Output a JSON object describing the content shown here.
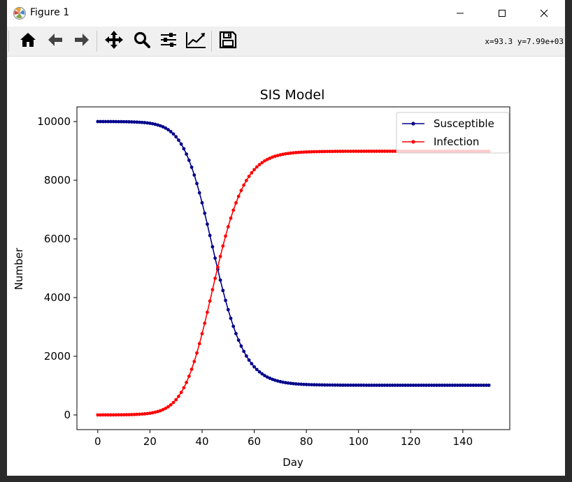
{
  "window": {
    "title": "Figure 1",
    "coords_readout": "x=93.3 y=7.99e+03"
  },
  "toolbar": {
    "buttons": [
      "home-icon",
      "back-icon",
      "forward-icon",
      "pan-icon",
      "zoom-icon",
      "configure-subplots-icon",
      "edit-axis-icon",
      "save-icon"
    ]
  },
  "colors": {
    "susceptible": "#00008b",
    "infection": "#ff0000"
  },
  "chart_data": {
    "type": "line",
    "title": "SIS Model",
    "xlabel": "Day",
    "ylabel": "Number",
    "xlim": [
      -8,
      158
    ],
    "ylim": [
      -500,
      10500
    ],
    "xticks": [
      0,
      20,
      40,
      60,
      80,
      100,
      120,
      140
    ],
    "yticks": [
      0,
      2000,
      4000,
      6000,
      8000,
      10000
    ],
    "grid": false,
    "legend_position": "top-right",
    "x": [
      0,
      1,
      2,
      3,
      4,
      5,
      6,
      7,
      8,
      9,
      10,
      11,
      12,
      13,
      14,
      15,
      16,
      17,
      18,
      19,
      20,
      21,
      22,
      23,
      24,
      25,
      26,
      27,
      28,
      29,
      30,
      31,
      32,
      33,
      34,
      35,
      36,
      37,
      38,
      39,
      40,
      41,
      42,
      43,
      44,
      45,
      46,
      47,
      48,
      49,
      50,
      51,
      52,
      53,
      54,
      55,
      56,
      57,
      58,
      59,
      60,
      61,
      62,
      63,
      64,
      65,
      66,
      67,
      68,
      69,
      70,
      71,
      72,
      73,
      74,
      75,
      76,
      77,
      78,
      79,
      80,
      81,
      82,
      83,
      84,
      85,
      86,
      87,
      88,
      89,
      90,
      91,
      92,
      93,
      94,
      95,
      96,
      97,
      98,
      99,
      100,
      101,
      102,
      103,
      104,
      105,
      106,
      107,
      108,
      109,
      110,
      111,
      112,
      113,
      114,
      115,
      116,
      117,
      118,
      119,
      120,
      121,
      122,
      123,
      124,
      125,
      126,
      127,
      128,
      129,
      130,
      131,
      132,
      133,
      134,
      135,
      136,
      137,
      138,
      139,
      140,
      141,
      142,
      143,
      144,
      145,
      146,
      147,
      148,
      149,
      150
    ],
    "series": [
      {
        "name": "Susceptible",
        "values": [
          10000,
          10000,
          9999,
          9999,
          9999,
          9998,
          9998,
          9997,
          9996,
          9995,
          9994,
          9993,
          9991,
          9988,
          9985,
          9981,
          9976,
          9970,
          9963,
          9953,
          9941,
          9926,
          9907,
          9884,
          9855,
          9820,
          9776,
          9722,
          9656,
          9577,
          9481,
          9367,
          9232,
          9074,
          8891,
          8681,
          8443,
          8178,
          7887,
          7570,
          7231,
          6873,
          6501,
          6118,
          5731,
          5345,
          4965,
          4596,
          4241,
          3904,
          3587,
          3292,
          3020,
          2772,
          2548,
          2347,
          2167,
          2008,
          1869,
          1747,
          1640,
          1548,
          1469,
          1401,
          1342,
          1292,
          1250,
          1213,
          1183,
          1157,
          1135,
          1116,
          1100,
          1087,
          1076,
          1066,
          1058,
          1051,
          1046,
          1041,
          1037,
          1033,
          1030,
          1028,
          1026,
          1024,
          1022,
          1021,
          1020,
          1018,
          1018,
          1017,
          1016,
          1015,
          1015,
          1014,
          1014,
          1014,
          1013,
          1013,
          1013,
          1013,
          1013,
          1012,
          1012,
          1012,
          1012,
          1012,
          1012,
          1012,
          1012,
          1012,
          1012,
          1012,
          1012,
          1012,
          1012,
          1012,
          1012,
          1012,
          1012,
          1012,
          1012,
          1012,
          1012,
          1012,
          1012,
          1012,
          1012,
          1012,
          1012,
          1012,
          1012,
          1012,
          1012,
          1012,
          1012,
          1012,
          1012,
          1012,
          1012,
          1012,
          1012,
          1012,
          1012,
          1012,
          1012,
          1012,
          1012,
          1012,
          1012
        ]
      },
      {
        "name": "Infection",
        "values": [
          0,
          0,
          1,
          1,
          1,
          2,
          2,
          3,
          4,
          5,
          6,
          7,
          9,
          12,
          15,
          19,
          24,
          30,
          37,
          47,
          59,
          74,
          93,
          116,
          145,
          180,
          224,
          278,
          344,
          423,
          519,
          633,
          768,
          926,
          1109,
          1319,
          1557,
          1822,
          2113,
          2430,
          2769,
          3127,
          3499,
          3882,
          4269,
          4655,
          5035,
          5404,
          5759,
          6096,
          6413,
          6708,
          6980,
          7228,
          7452,
          7653,
          7833,
          7992,
          8131,
          8253,
          8360,
          8452,
          8531,
          8599,
          8658,
          8708,
          8750,
          8787,
          8817,
          8843,
          8865,
          8884,
          8900,
          8913,
          8924,
          8934,
          8942,
          8949,
          8954,
          8959,
          8963,
          8967,
          8970,
          8972,
          8974,
          8976,
          8978,
          8979,
          8980,
          8982,
          8982,
          8983,
          8984,
          8985,
          8985,
          8986,
          8986,
          8986,
          8987,
          8987,
          8987,
          8987,
          8987,
          8988,
          8988,
          8988,
          8988,
          8988,
          8988,
          8988,
          8988,
          8988,
          8988,
          8988,
          8988,
          8988,
          8988,
          8988,
          8988,
          8988,
          8988,
          8988,
          8988,
          8988,
          8988,
          8988,
          8988,
          8988,
          8988,
          8988,
          8988,
          8988,
          8988,
          8988,
          8988,
          8988,
          8988,
          8988,
          8988,
          8988,
          8988,
          8988,
          8988,
          8988,
          8988,
          8988,
          8988,
          8988,
          8988,
          8988,
          8988
        ]
      }
    ]
  }
}
